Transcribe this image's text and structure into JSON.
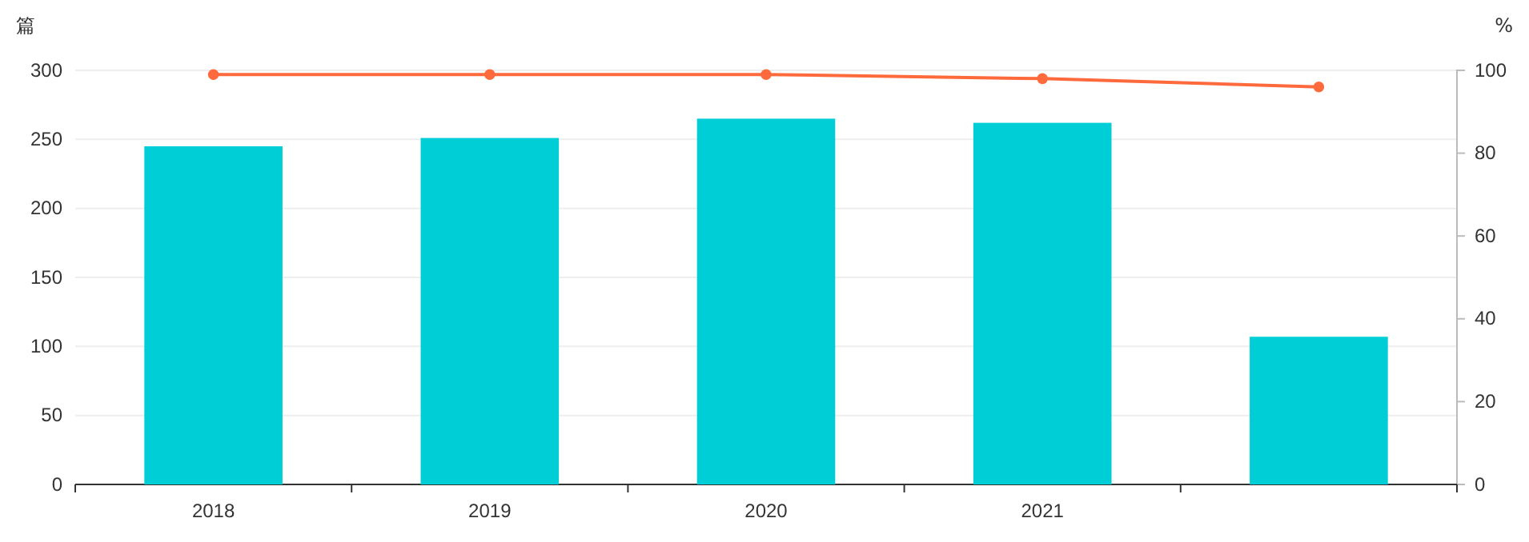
{
  "chart_data": {
    "type": "bar",
    "ylabel": "篇",
    "y2label": "%",
    "categories": [
      "2018",
      "2019",
      "2020",
      "2021",
      null
    ],
    "series": [
      {
        "color": "#00ced6",
        "values": [
          245,
          251,
          265,
          262,
          107
        ]
      },
      {
        "type": "line",
        "axis": "y2",
        "color": "#ff6a3d",
        "values": [
          99,
          99,
          99,
          98,
          96
        ]
      }
    ],
    "ylim": [
      0,
      300
    ],
    "yticks": [
      0,
      50,
      100,
      150,
      200,
      250,
      300
    ],
    "y2lim": [
      0,
      100
    ],
    "y2ticks": [
      0,
      20,
      40,
      60,
      80,
      100
    ],
    "grid": "y",
    "marker": "circle",
    "line_style": "solid"
  }
}
